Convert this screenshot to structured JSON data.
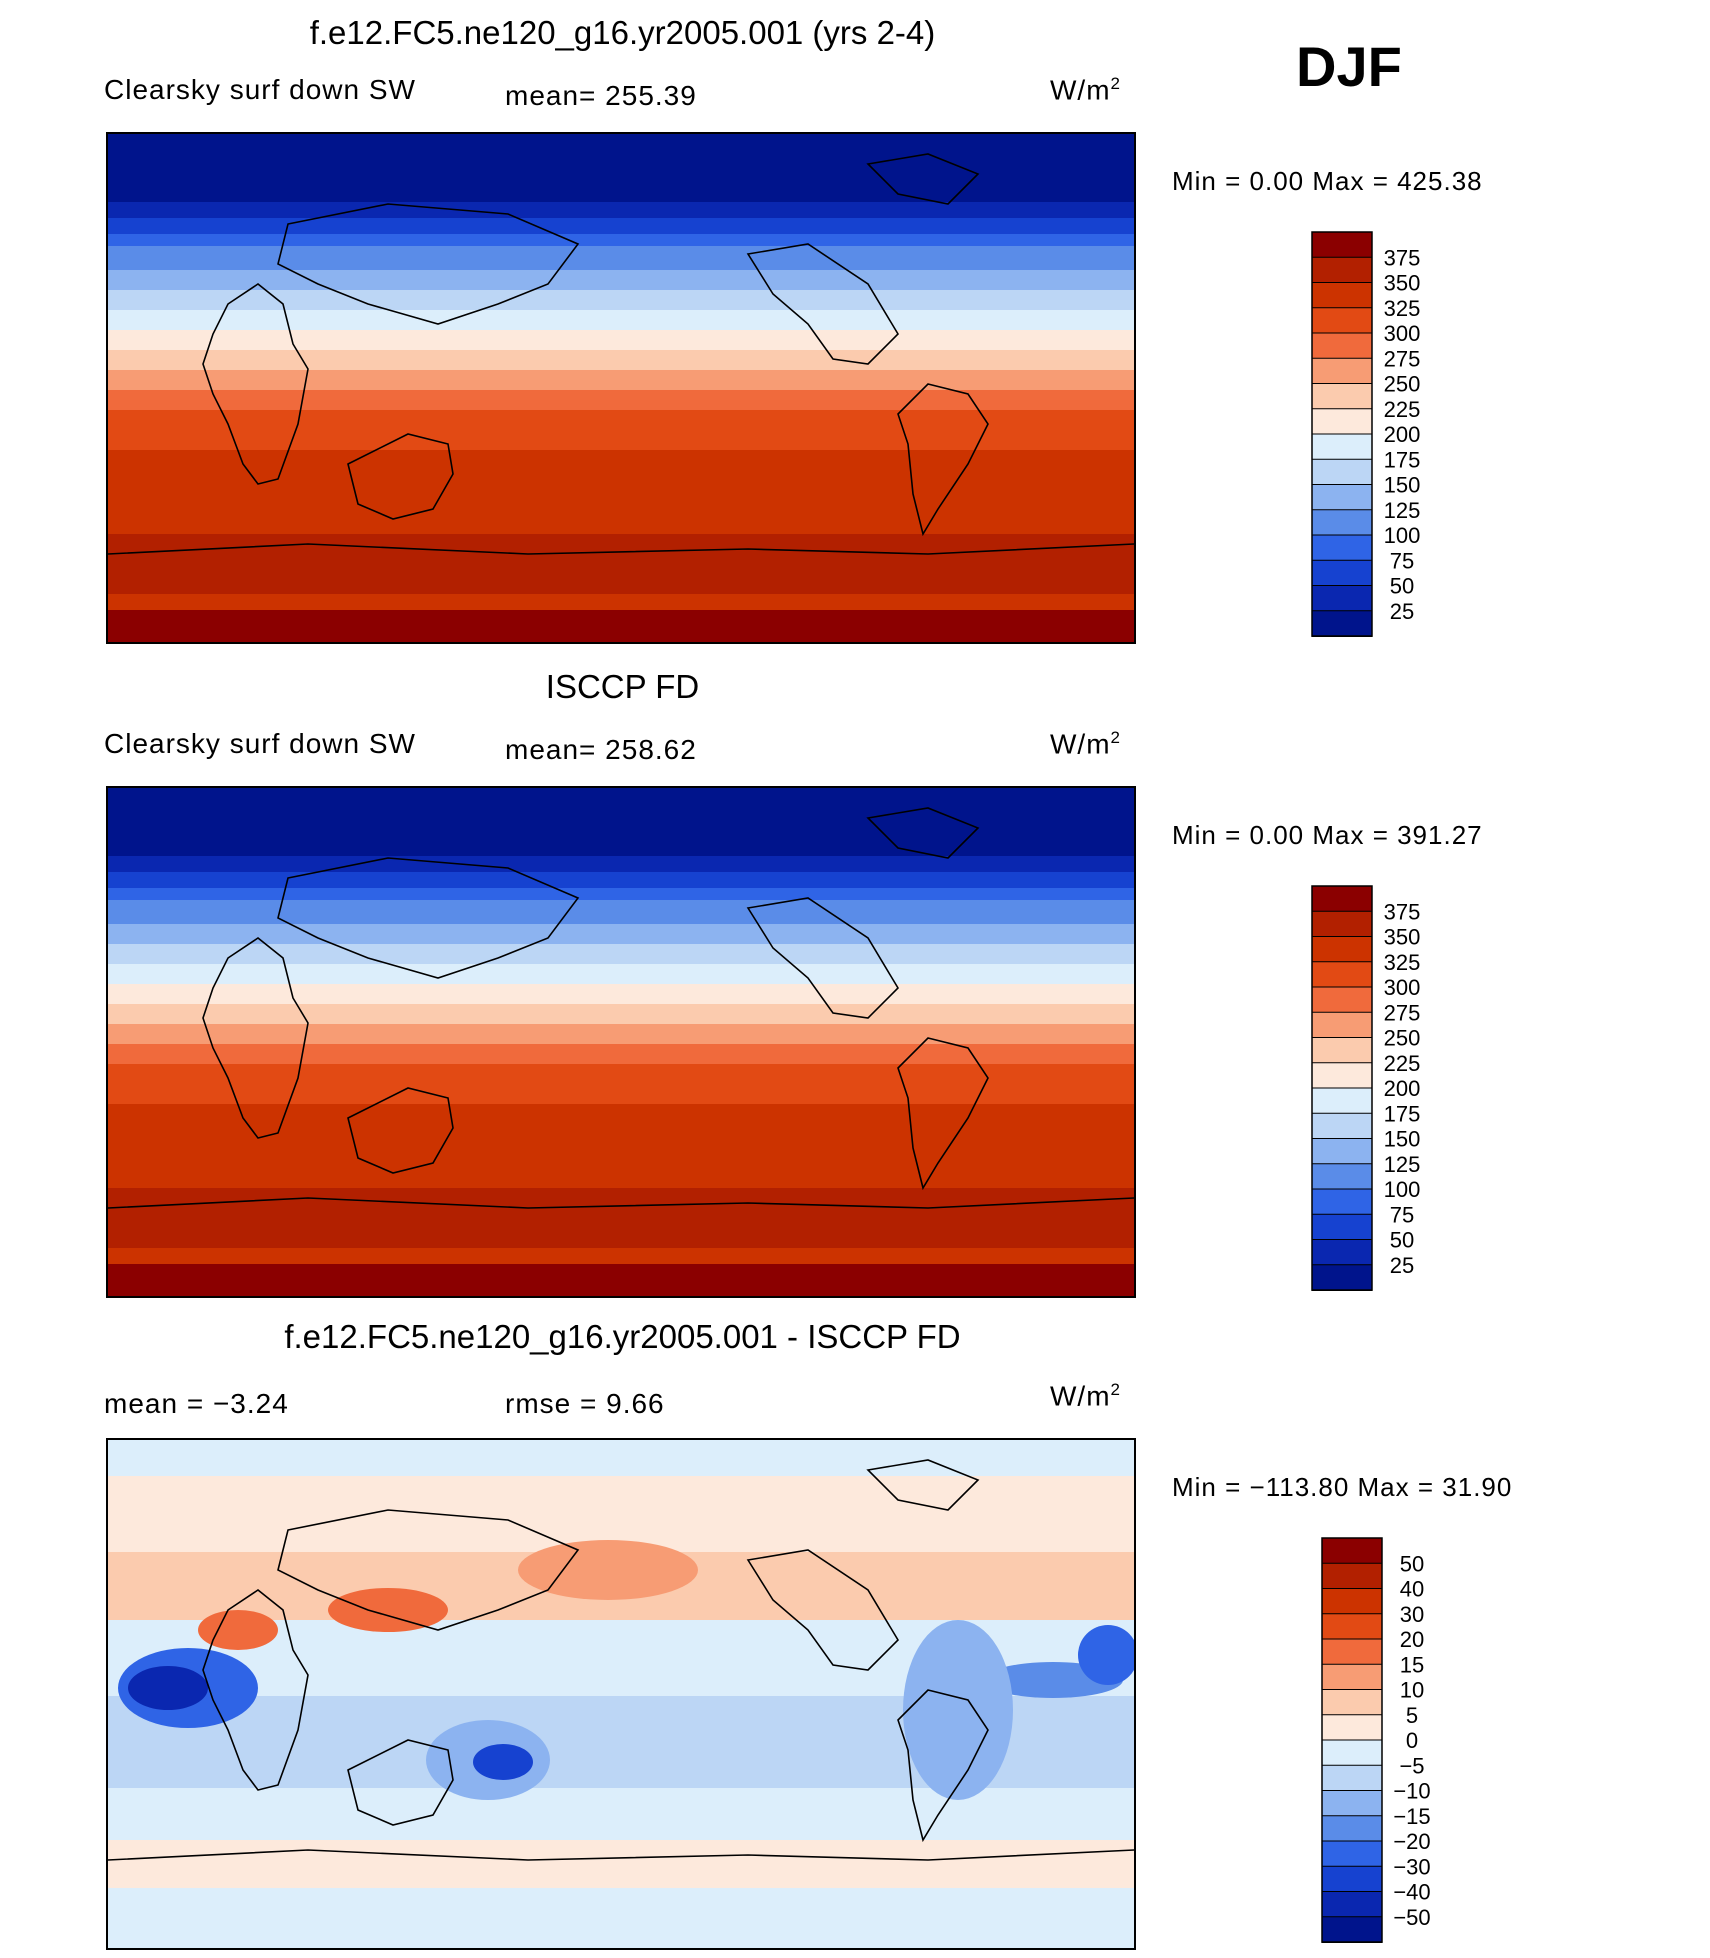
{
  "season": "DJF",
  "panels": [
    {
      "id": "model",
      "title": "f.e12.FC5.ne120_g16.yr2005.001 (yrs 2-4)",
      "left_label": "Clearsky surf down SW",
      "center_label": "mean= 255.39",
      "units": "W/m",
      "units_sup": "2",
      "minmax": "Min =    0.00 Max = 425.38",
      "style": "abs"
    },
    {
      "id": "obs",
      "title": "ISCCP FD",
      "left_label": "Clearsky surf down SW",
      "center_label": "mean= 258.62",
      "units": "W/m",
      "units_sup": "2",
      "minmax": "Min =    0.00 Max = 391.27",
      "style": "abs"
    },
    {
      "id": "diff",
      "title": "f.e12.FC5.ne120_g16.yr2005.001 - ISCCP FD",
      "left_label": "mean =   −3.24",
      "center_label": "rmse =    9.66",
      "units": "W/m",
      "units_sup": "2",
      "minmax": "Min = −113.80 Max =   31.90",
      "style": "diff"
    }
  ],
  "chart_data": [
    {
      "type": "heatmap",
      "title": "f.e12.FC5.ne120_g16.yr2005.001 (yrs 2-4)",
      "variable": "Clearsky surf down SW",
      "units": "W/m2",
      "mean": 255.39,
      "min": 0.0,
      "max": 425.38,
      "colorbar_levels": [
        375,
        350,
        325,
        300,
        275,
        250,
        225,
        200,
        175,
        150,
        125,
        100,
        75,
        50,
        25
      ],
      "colorbar_colors": [
        "#8b0000",
        "#b22000",
        "#cc3300",
        "#e24a14",
        "#f06a3c",
        "#f79c74",
        "#fbcbae",
        "#fde9dc",
        "#dceefb",
        "#bcd6f5",
        "#8cb3f0",
        "#5a8ce8",
        "#2f64e6",
        "#1642d0",
        "#0a27b0",
        "#00148c"
      ]
    },
    {
      "type": "heatmap",
      "title": "ISCCP FD",
      "variable": "Clearsky surf down SW",
      "units": "W/m2",
      "mean": 258.62,
      "min": 0.0,
      "max": 391.27,
      "colorbar_levels": [
        375,
        350,
        325,
        300,
        275,
        250,
        225,
        200,
        175,
        150,
        125,
        100,
        75,
        50,
        25
      ],
      "colorbar_colors": [
        "#8b0000",
        "#b22000",
        "#cc3300",
        "#e24a14",
        "#f06a3c",
        "#f79c74",
        "#fbcbae",
        "#fde9dc",
        "#dceefb",
        "#bcd6f5",
        "#8cb3f0",
        "#5a8ce8",
        "#2f64e6",
        "#1642d0",
        "#0a27b0",
        "#00148c"
      ]
    },
    {
      "type": "heatmap",
      "title": "f.e12.FC5.ne120_g16.yr2005.001 - ISCCP FD",
      "units": "W/m2",
      "mean": -3.24,
      "rmse": 9.66,
      "min": -113.8,
      "max": 31.9,
      "colorbar_levels": [
        "50",
        "40",
        "30",
        "20",
        "15",
        "10",
        "5",
        "0",
        "−5",
        "−10",
        "−15",
        "−20",
        "−30",
        "−40",
        "−50"
      ],
      "colorbar_colors": [
        "#8b0000",
        "#b22000",
        "#cc3300",
        "#e24a14",
        "#f06a3c",
        "#f79c74",
        "#fbcbae",
        "#fde9dc",
        "#dceefb",
        "#bcd6f5",
        "#8cb3f0",
        "#5a8ce8",
        "#2f64e6",
        "#1642d0",
        "#0a27b0",
        "#00148c"
      ]
    }
  ]
}
